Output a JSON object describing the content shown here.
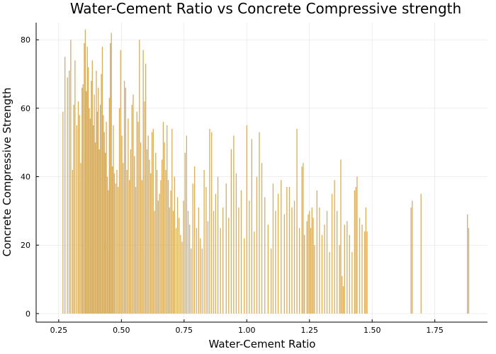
{
  "chart_data": {
    "type": "bar",
    "title": "Water-Cement Ratio vs Concrete Compressive strength",
    "xlabel": "Water-Cement Ratio",
    "ylabel": "Concrete Compressive Strength",
    "xlim": [
      0.16,
      1.96
    ],
    "ylim": [
      -2.5,
      85
    ],
    "x_ticks": [
      0.25,
      0.5,
      0.75,
      1.0,
      1.25,
      1.5,
      1.75
    ],
    "x_tick_labels": [
      "0.25",
      "0.50",
      "0.75",
      "1.00",
      "1.25",
      "1.50",
      "1.75"
    ],
    "y_ticks": [
      0,
      20,
      40,
      60,
      80
    ],
    "y_tick_labels": [
      "0",
      "20",
      "40",
      "60",
      "80"
    ],
    "grid": true,
    "legend": "none",
    "color": "#d8ad5b",
    "points": [
      [
        0.267,
        59
      ],
      [
        0.275,
        75
      ],
      [
        0.285,
        69
      ],
      [
        0.292,
        71
      ],
      [
        0.298,
        80
      ],
      [
        0.305,
        42
      ],
      [
        0.31,
        61
      ],
      [
        0.315,
        74
      ],
      [
        0.322,
        55
      ],
      [
        0.328,
        62
      ],
      [
        0.333,
        58
      ],
      [
        0.338,
        44
      ],
      [
        0.343,
        66
      ],
      [
        0.347,
        67
      ],
      [
        0.352,
        79
      ],
      [
        0.356,
        83
      ],
      [
        0.36,
        65
      ],
      [
        0.364,
        78
      ],
      [
        0.368,
        72
      ],
      [
        0.372,
        60
      ],
      [
        0.376,
        57
      ],
      [
        0.38,
        68
      ],
      [
        0.384,
        74
      ],
      [
        0.388,
        55
      ],
      [
        0.392,
        64
      ],
      [
        0.396,
        50
      ],
      [
        0.4,
        71
      ],
      [
        0.404,
        59
      ],
      [
        0.408,
        66
      ],
      [
        0.412,
        48
      ],
      [
        0.416,
        61
      ],
      [
        0.42,
        70
      ],
      [
        0.424,
        78
      ],
      [
        0.428,
        58
      ],
      [
        0.432,
        53
      ],
      [
        0.436,
        47
      ],
      [
        0.44,
        56
      ],
      [
        0.444,
        40
      ],
      [
        0.448,
        36
      ],
      [
        0.452,
        63
      ],
      [
        0.456,
        79
      ],
      [
        0.46,
        82
      ],
      [
        0.464,
        43
      ],
      [
        0.468,
        55
      ],
      [
        0.472,
        41
      ],
      [
        0.477,
        38
      ],
      [
        0.482,
        42
      ],
      [
        0.487,
        37
      ],
      [
        0.492,
        60
      ],
      [
        0.497,
        77
      ],
      [
        0.502,
        52
      ],
      [
        0.507,
        44
      ],
      [
        0.512,
        68
      ],
      [
        0.517,
        66
      ],
      [
        0.522,
        42
      ],
      [
        0.527,
        57
      ],
      [
        0.532,
        39
      ],
      [
        0.537,
        48
      ],
      [
        0.542,
        61
      ],
      [
        0.547,
        64
      ],
      [
        0.552,
        46
      ],
      [
        0.557,
        37
      ],
      [
        0.562,
        59
      ],
      [
        0.567,
        56
      ],
      [
        0.572,
        80
      ],
      [
        0.577,
        50
      ],
      [
        0.582,
        39
      ],
      [
        0.587,
        77
      ],
      [
        0.592,
        62
      ],
      [
        0.597,
        73
      ],
      [
        0.602,
        48
      ],
      [
        0.607,
        52
      ],
      [
        0.612,
        45
      ],
      [
        0.617,
        41
      ],
      [
        0.622,
        53
      ],
      [
        0.627,
        54
      ],
      [
        0.632,
        30
      ],
      [
        0.637,
        47
      ],
      [
        0.642,
        42
      ],
      [
        0.647,
        33
      ],
      [
        0.652,
        35
      ],
      [
        0.657,
        39
      ],
      [
        0.662,
        45
      ],
      [
        0.667,
        56
      ],
      [
        0.672,
        50
      ],
      [
        0.677,
        42
      ],
      [
        0.682,
        55
      ],
      [
        0.687,
        39
      ],
      [
        0.692,
        31
      ],
      [
        0.697,
        36
      ],
      [
        0.702,
        54
      ],
      [
        0.707,
        30
      ],
      [
        0.712,
        40
      ],
      [
        0.718,
        25
      ],
      [
        0.724,
        34
      ],
      [
        0.73,
        28
      ],
      [
        0.736,
        23
      ],
      [
        0.742,
        21
      ],
      [
        0.748,
        33
      ],
      [
        0.754,
        47
      ],
      [
        0.76,
        52
      ],
      [
        0.766,
        30
      ],
      [
        0.772,
        26
      ],
      [
        0.778,
        19
      ],
      [
        0.785,
        38
      ],
      [
        0.792,
        43
      ],
      [
        0.8,
        25
      ],
      [
        0.808,
        31
      ],
      [
        0.815,
        22
      ],
      [
        0.822,
        19
      ],
      [
        0.83,
        42
      ],
      [
        0.838,
        37
      ],
      [
        0.845,
        27
      ],
      [
        0.852,
        54
      ],
      [
        0.86,
        53
      ],
      [
        0.868,
        30
      ],
      [
        0.876,
        35
      ],
      [
        0.885,
        40
      ],
      [
        0.895,
        25
      ],
      [
        0.905,
        31
      ],
      [
        0.918,
        38
      ],
      [
        0.928,
        28
      ],
      [
        0.938,
        48
      ],
      [
        0.948,
        52
      ],
      [
        0.958,
        41
      ],
      [
        0.968,
        31
      ],
      [
        0.978,
        36
      ],
      [
        0.99,
        22
      ],
      [
        1.0,
        55
      ],
      [
        1.01,
        33
      ],
      [
        1.02,
        51
      ],
      [
        1.03,
        24
      ],
      [
        1.04,
        40
      ],
      [
        1.05,
        53
      ],
      [
        1.06,
        44
      ],
      [
        1.072,
        34
      ],
      [
        1.085,
        26
      ],
      [
        1.097,
        19
      ],
      [
        1.105,
        38
      ],
      [
        1.115,
        30
      ],
      [
        1.125,
        35
      ],
      [
        1.137,
        39
      ],
      [
        1.15,
        29
      ],
      [
        1.16,
        37
      ],
      [
        1.17,
        37
      ],
      [
        1.18,
        31
      ],
      [
        1.19,
        33
      ],
      [
        1.2,
        54
      ],
      [
        1.21,
        25
      ],
      [
        1.22,
        43
      ],
      [
        1.225,
        44
      ],
      [
        1.23,
        23
      ],
      [
        1.24,
        27
      ],
      [
        1.245,
        29
      ],
      [
        1.25,
        30
      ],
      [
        1.255,
        25
      ],
      [
        1.26,
        31
      ],
      [
        1.265,
        28
      ],
      [
        1.27,
        20
      ],
      [
        1.28,
        36
      ],
      [
        1.29,
        31
      ],
      [
        1.3,
        23
      ],
      [
        1.31,
        26
      ],
      [
        1.32,
        30
      ],
      [
        1.33,
        18
      ],
      [
        1.34,
        35
      ],
      [
        1.35,
        39
      ],
      [
        1.36,
        30
      ],
      [
        1.37,
        20
      ],
      [
        1.375,
        45
      ],
      [
        1.38,
        11
      ],
      [
        1.385,
        8
      ],
      [
        1.39,
        26
      ],
      [
        1.4,
        27
      ],
      [
        1.41,
        23
      ],
      [
        1.42,
        18
      ],
      [
        1.43,
        36
      ],
      [
        1.435,
        37
      ],
      [
        1.44,
        40
      ],
      [
        1.45,
        28
      ],
      [
        1.46,
        26
      ],
      [
        1.47,
        24
      ],
      [
        1.475,
        31
      ],
      [
        1.48,
        24
      ],
      [
        1.655,
        31
      ],
      [
        1.66,
        33
      ],
      [
        1.695,
        35
      ],
      [
        1.88,
        29
      ],
      [
        1.885,
        25
      ]
    ]
  }
}
